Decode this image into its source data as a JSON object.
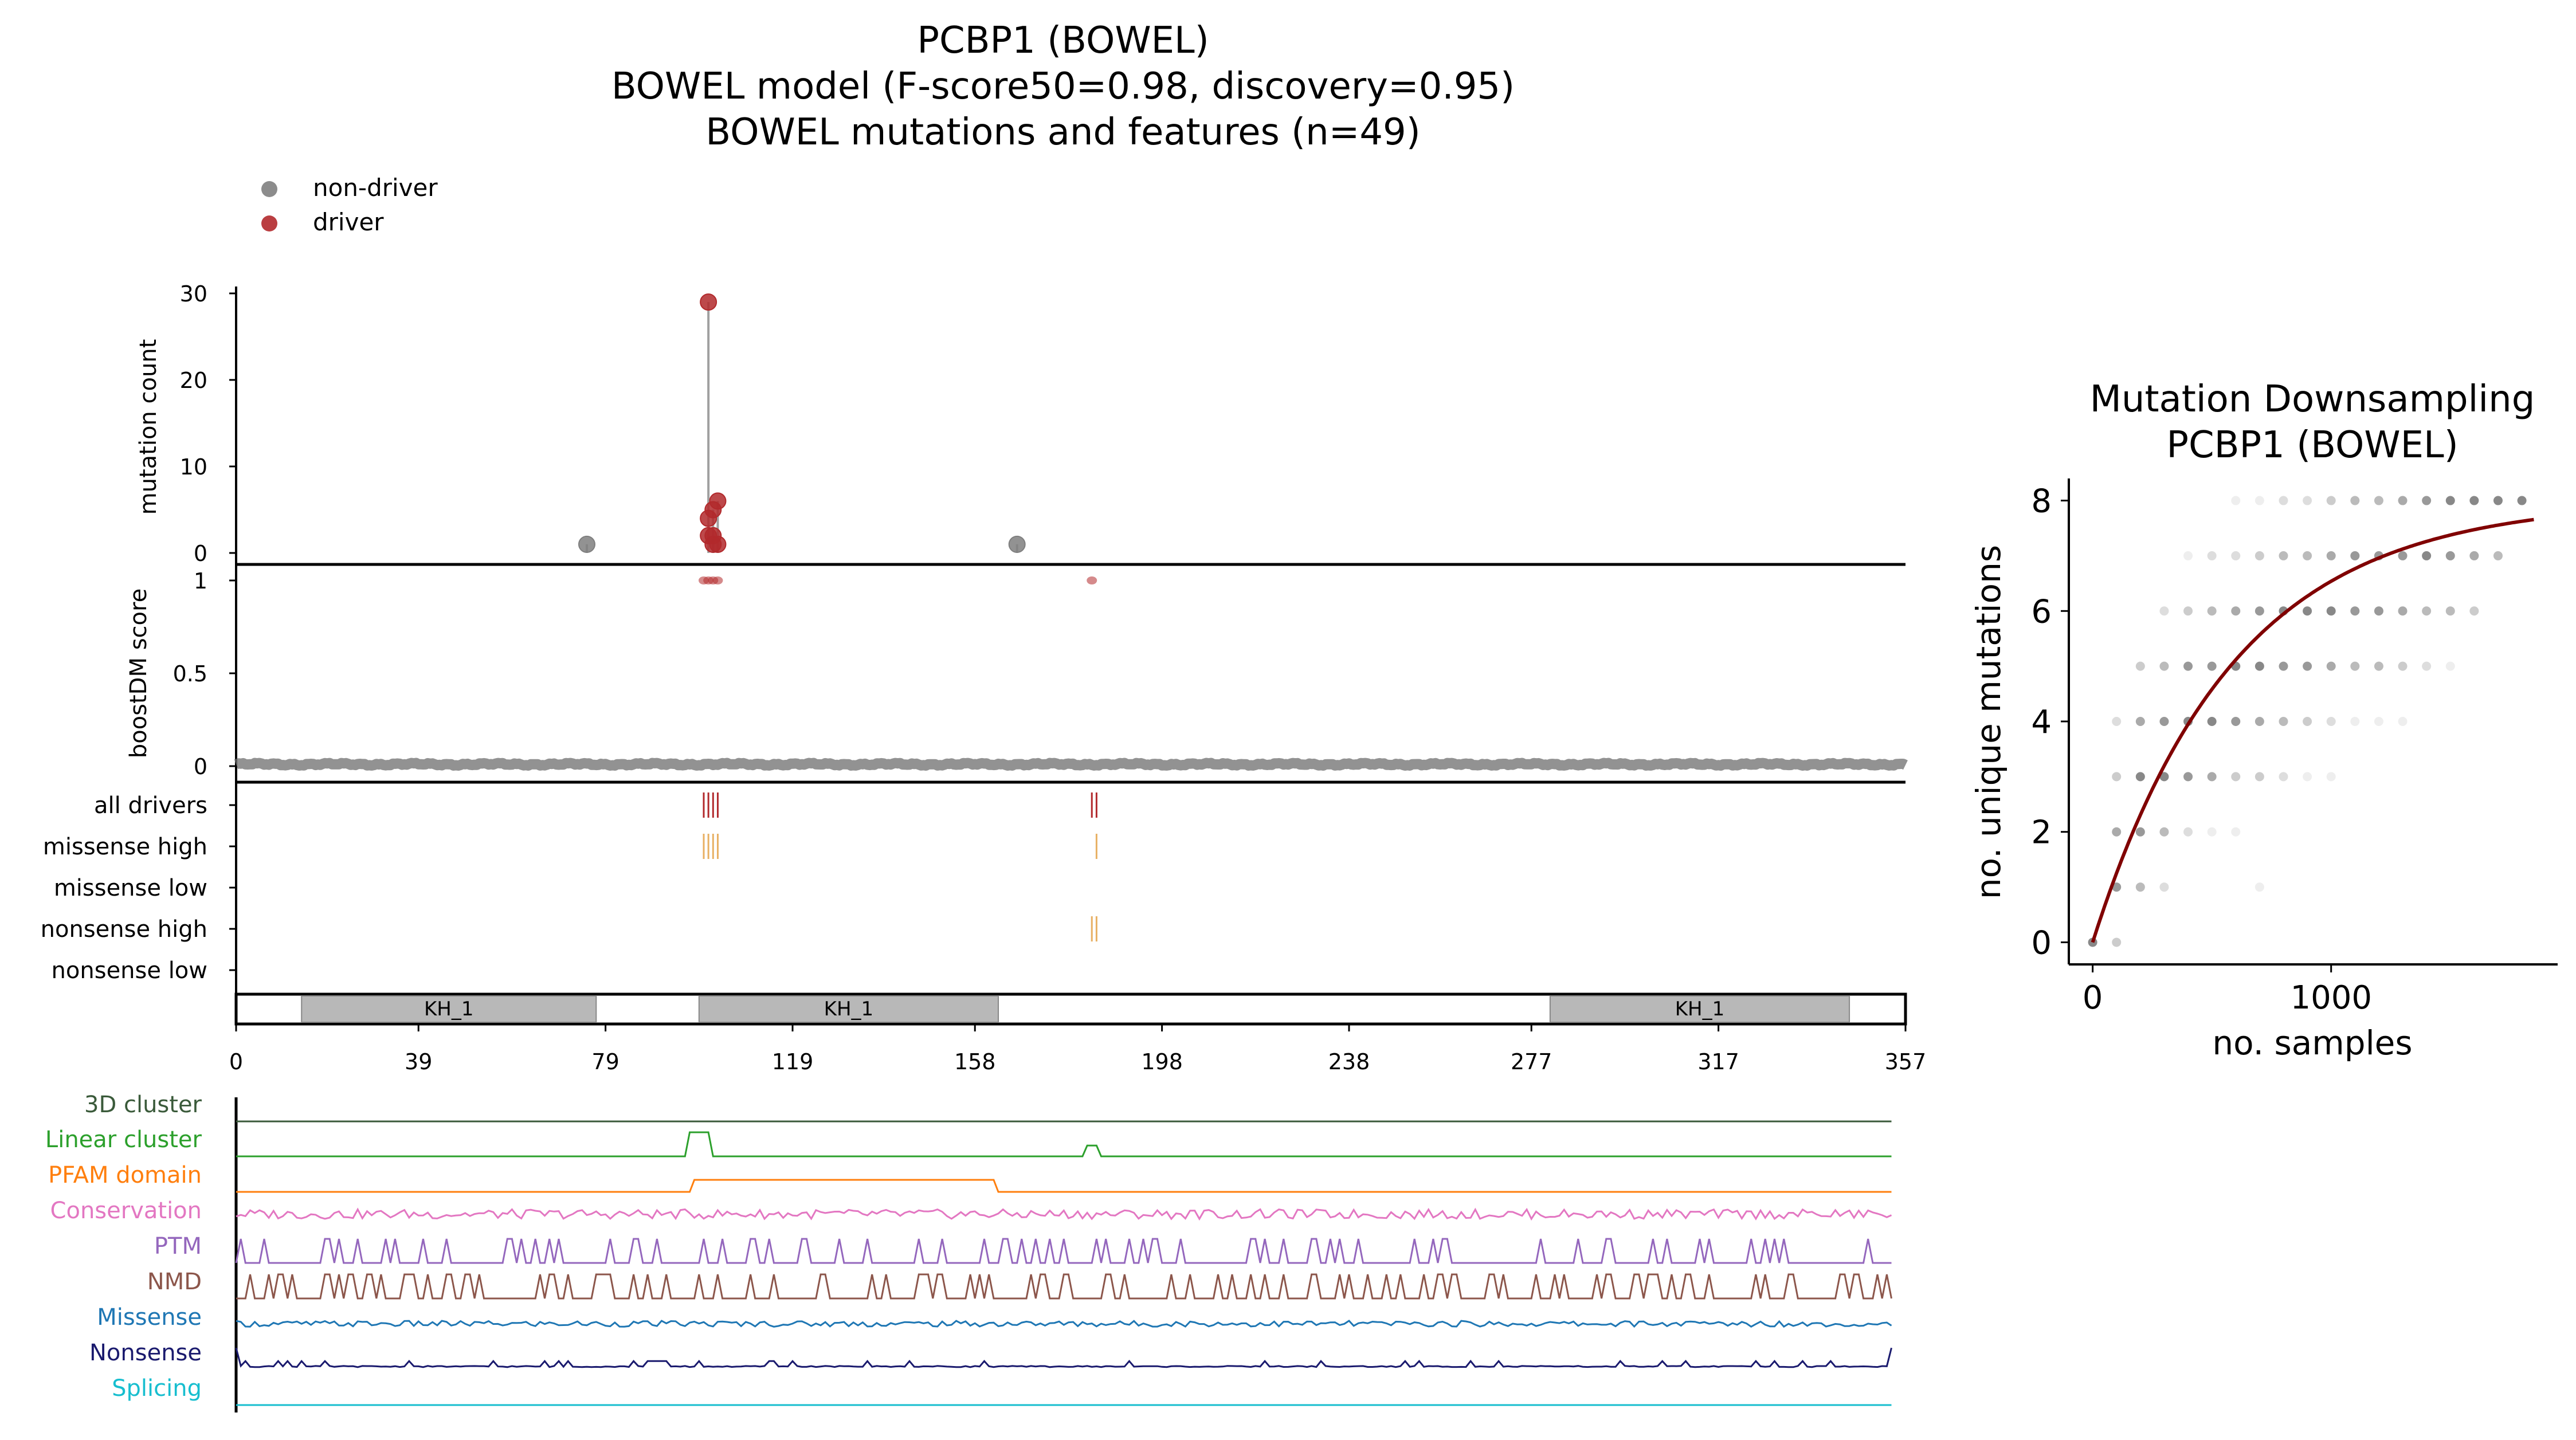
{
  "main": {
    "title_lines": [
      "PCBP1 (BOWEL)",
      "BOWEL model (F-score50=0.98, discovery=0.95)",
      "BOWEL mutations and features (n=49)"
    ],
    "legend": [
      {
        "label": "non-driver",
        "color": "#7f7f7f"
      },
      {
        "label": "driver",
        "color": "#b2292c"
      }
    ],
    "colors": {
      "driver": "#b2292c",
      "nondriver": "#7f7f7f",
      "stem": "#a0a0a0",
      "missense_high": "#e8b063",
      "nonsense_high": "#e8b063",
      "domain_fill": "#b8b8b8"
    }
  },
  "chart_data": [
    {
      "type": "scatter",
      "name": "mutation count lollipop",
      "ylabel": "mutation count",
      "ylim": [
        0,
        30
      ],
      "yticks": [
        0,
        10,
        20,
        30
      ],
      "xlim": [
        0,
        357
      ],
      "points": [
        {
          "x": 75,
          "y": 1,
          "class": "non-driver"
        },
        {
          "x": 101,
          "y": 29,
          "class": "driver"
        },
        {
          "x": 101,
          "y": 4,
          "class": "driver"
        },
        {
          "x": 101,
          "y": 2,
          "class": "driver"
        },
        {
          "x": 102,
          "y": 2,
          "class": "driver"
        },
        {
          "x": 102,
          "y": 1,
          "class": "driver"
        },
        {
          "x": 102,
          "y": 5,
          "class": "driver"
        },
        {
          "x": 103,
          "y": 6,
          "class": "driver"
        },
        {
          "x": 103,
          "y": 1,
          "class": "driver"
        },
        {
          "x": 167,
          "y": 1,
          "class": "non-driver"
        }
      ]
    },
    {
      "type": "scatter",
      "name": "boostDM score",
      "ylabel": "boostDM score",
      "ylim": [
        0,
        1
      ],
      "yticks": [
        0,
        0.5,
        1
      ],
      "yticklabels": [
        "0",
        "0.5",
        "1"
      ],
      "xlim": [
        0,
        357
      ],
      "baseline": 0.01,
      "high_points": [
        {
          "x": 100,
          "y": 1
        },
        {
          "x": 101,
          "y": 1
        },
        {
          "x": 102,
          "y": 1
        },
        {
          "x": 103,
          "y": 1
        },
        {
          "x": 183,
          "y": 1
        }
      ]
    },
    {
      "type": "table",
      "name": "driver tracks",
      "rows": [
        {
          "label": "all drivers",
          "positions": [
            100,
            101,
            102,
            103,
            183,
            184
          ],
          "color": "#b2292c"
        },
        {
          "label": "missense high",
          "positions": [
            100,
            101,
            102,
            103,
            184
          ],
          "color": "#e8b063"
        },
        {
          "label": "missense low",
          "positions": [],
          "color": "#e8b063"
        },
        {
          "label": "nonsense high",
          "positions": [
            183,
            184
          ],
          "color": "#e8b063"
        },
        {
          "label": "nonsense low",
          "positions": [],
          "color": "#e8b063"
        }
      ]
    },
    {
      "type": "bar",
      "name": "domains",
      "xlim": [
        0,
        357
      ],
      "domains": [
        {
          "label": "KH_1",
          "start": 14,
          "end": 77
        },
        {
          "label": "KH_1",
          "start": 99,
          "end": 163
        },
        {
          "label": "KH_1",
          "start": 281,
          "end": 345
        }
      ],
      "xticks": [
        0,
        39,
        79,
        119,
        158,
        198,
        238,
        277,
        317,
        357
      ]
    },
    {
      "type": "line",
      "name": "feature tracks",
      "xlim": [
        0,
        357
      ],
      "tracks": [
        {
          "label": "3D cluster",
          "color": "#3a5a3a"
        },
        {
          "label": "Linear cluster",
          "color": "#2ca02c"
        },
        {
          "label": "PFAM domain",
          "color": "#ff7f0e"
        },
        {
          "label": "Conservation",
          "color": "#e377c2"
        },
        {
          "label": "PTM",
          "color": "#9467bd"
        },
        {
          "label": "NMD",
          "color": "#8c564b"
        },
        {
          "label": "Missense",
          "color": "#1f77b4"
        },
        {
          "label": "Nonsense",
          "color": "#1a1a6e"
        },
        {
          "label": "Splicing",
          "color": "#17becf"
        }
      ],
      "linear_cluster_peaks": [
        {
          "start": 97,
          "end": 101,
          "height": 1
        },
        {
          "start": 182,
          "end": 184,
          "height": 0.45
        }
      ],
      "pfam_domain_range": [
        98,
        162
      ]
    },
    {
      "type": "scatter",
      "name": "Mutation Downsampling",
      "title_lines": [
        "Mutation Downsampling",
        "PCBP1 (BOWEL)"
      ],
      "xlabel": "no. samples",
      "ylabel": "no. unique mutations",
      "xlim": [
        -100,
        1950
      ],
      "ylim": [
        -0.4,
        8.4
      ],
      "xticks": [
        0,
        1000
      ],
      "yticks": [
        0,
        2,
        4,
        6,
        8
      ],
      "curve": {
        "asymptote": 8.0,
        "rate": 0.0017,
        "color": "#800000"
      },
      "sample_sizes": [
        0,
        100,
        200,
        300,
        400,
        500,
        600,
        700,
        800,
        900,
        1000,
        1100,
        1200,
        1300,
        1400,
        1500,
        1600,
        1700,
        1800
      ],
      "grey_points": [
        {
          "x": 0,
          "y": 0,
          "w": 0.7
        },
        {
          "x": 100,
          "y": 0,
          "w": 0.3
        },
        {
          "x": 100,
          "y": 1,
          "w": 0.6
        },
        {
          "x": 200,
          "y": 1,
          "w": 0.4
        },
        {
          "x": 300,
          "y": 1,
          "w": 0.2
        },
        {
          "x": 700,
          "y": 1,
          "w": 0.1
        },
        {
          "x": 100,
          "y": 2,
          "w": 0.5
        },
        {
          "x": 200,
          "y": 2,
          "w": 0.6
        },
        {
          "x": 300,
          "y": 2,
          "w": 0.4
        },
        {
          "x": 400,
          "y": 2,
          "w": 0.2
        },
        {
          "x": 500,
          "y": 2,
          "w": 0.1
        },
        {
          "x": 600,
          "y": 2,
          "w": 0.1
        },
        {
          "x": 100,
          "y": 3,
          "w": 0.3
        },
        {
          "x": 200,
          "y": 3,
          "w": 0.7
        },
        {
          "x": 300,
          "y": 3,
          "w": 0.7
        },
        {
          "x": 400,
          "y": 3,
          "w": 0.6
        },
        {
          "x": 500,
          "y": 3,
          "w": 0.5
        },
        {
          "x": 600,
          "y": 3,
          "w": 0.3
        },
        {
          "x": 700,
          "y": 3,
          "w": 0.3
        },
        {
          "x": 800,
          "y": 3,
          "w": 0.2
        },
        {
          "x": 900,
          "y": 3,
          "w": 0.1
        },
        {
          "x": 1000,
          "y": 3,
          "w": 0.1
        },
        {
          "x": 100,
          "y": 4,
          "w": 0.2
        },
        {
          "x": 200,
          "y": 4,
          "w": 0.5
        },
        {
          "x": 300,
          "y": 4,
          "w": 0.6
        },
        {
          "x": 400,
          "y": 4,
          "w": 0.7
        },
        {
          "x": 500,
          "y": 4,
          "w": 0.7
        },
        {
          "x": 600,
          "y": 4,
          "w": 0.6
        },
        {
          "x": 700,
          "y": 4,
          "w": 0.5
        },
        {
          "x": 800,
          "y": 4,
          "w": 0.4
        },
        {
          "x": 900,
          "y": 4,
          "w": 0.3
        },
        {
          "x": 1000,
          "y": 4,
          "w": 0.2
        },
        {
          "x": 1100,
          "y": 4,
          "w": 0.1
        },
        {
          "x": 1200,
          "y": 4,
          "w": 0.1
        },
        {
          "x": 1300,
          "y": 4,
          "w": 0.1
        },
        {
          "x": 200,
          "y": 5,
          "w": 0.3
        },
        {
          "x": 300,
          "y": 5,
          "w": 0.4
        },
        {
          "x": 400,
          "y": 5,
          "w": 0.6
        },
        {
          "x": 500,
          "y": 5,
          "w": 0.6
        },
        {
          "x": 600,
          "y": 5,
          "w": 0.7
        },
        {
          "x": 700,
          "y": 5,
          "w": 0.7
        },
        {
          "x": 800,
          "y": 5,
          "w": 0.6
        },
        {
          "x": 900,
          "y": 5,
          "w": 0.6
        },
        {
          "x": 1000,
          "y": 5,
          "w": 0.5
        },
        {
          "x": 1100,
          "y": 5,
          "w": 0.4
        },
        {
          "x": 1200,
          "y": 5,
          "w": 0.4
        },
        {
          "x": 1300,
          "y": 5,
          "w": 0.3
        },
        {
          "x": 1400,
          "y": 5,
          "w": 0.2
        },
        {
          "x": 1500,
          "y": 5,
          "w": 0.1
        },
        {
          "x": 300,
          "y": 6,
          "w": 0.2
        },
        {
          "x": 400,
          "y": 6,
          "w": 0.3
        },
        {
          "x": 500,
          "y": 6,
          "w": 0.4
        },
        {
          "x": 600,
          "y": 6,
          "w": 0.5
        },
        {
          "x": 700,
          "y": 6,
          "w": 0.6
        },
        {
          "x": 800,
          "y": 6,
          "w": 0.7
        },
        {
          "x": 900,
          "y": 6,
          "w": 0.7
        },
        {
          "x": 1000,
          "y": 6,
          "w": 0.7
        },
        {
          "x": 1100,
          "y": 6,
          "w": 0.6
        },
        {
          "x": 1200,
          "y": 6,
          "w": 0.6
        },
        {
          "x": 1300,
          "y": 6,
          "w": 0.5
        },
        {
          "x": 1400,
          "y": 6,
          "w": 0.4
        },
        {
          "x": 1500,
          "y": 6,
          "w": 0.4
        },
        {
          "x": 1600,
          "y": 6,
          "w": 0.3
        },
        {
          "x": 400,
          "y": 7,
          "w": 0.1
        },
        {
          "x": 500,
          "y": 7,
          "w": 0.2
        },
        {
          "x": 600,
          "y": 7,
          "w": 0.2
        },
        {
          "x": 700,
          "y": 7,
          "w": 0.3
        },
        {
          "x": 800,
          "y": 7,
          "w": 0.4
        },
        {
          "x": 900,
          "y": 7,
          "w": 0.4
        },
        {
          "x": 1000,
          "y": 7,
          "w": 0.5
        },
        {
          "x": 1100,
          "y": 7,
          "w": 0.6
        },
        {
          "x": 1200,
          "y": 7,
          "w": 0.6
        },
        {
          "x": 1300,
          "y": 7,
          "w": 0.6
        },
        {
          "x": 1400,
          "y": 7,
          "w": 0.7
        },
        {
          "x": 1500,
          "y": 7,
          "w": 0.6
        },
        {
          "x": 1600,
          "y": 7,
          "w": 0.5
        },
        {
          "x": 1700,
          "y": 7,
          "w": 0.4
        },
        {
          "x": 600,
          "y": 8,
          "w": 0.1
        },
        {
          "x": 700,
          "y": 8,
          "w": 0.1
        },
        {
          "x": 800,
          "y": 8,
          "w": 0.2
        },
        {
          "x": 900,
          "y": 8,
          "w": 0.2
        },
        {
          "x": 1000,
          "y": 8,
          "w": 0.3
        },
        {
          "x": 1100,
          "y": 8,
          "w": 0.4
        },
        {
          "x": 1200,
          "y": 8,
          "w": 0.4
        },
        {
          "x": 1300,
          "y": 8,
          "w": 0.5
        },
        {
          "x": 1400,
          "y": 8,
          "w": 0.6
        },
        {
          "x": 1500,
          "y": 8,
          "w": 0.7
        },
        {
          "x": 1600,
          "y": 8,
          "w": 0.7
        },
        {
          "x": 1700,
          "y": 8,
          "w": 0.7
        },
        {
          "x": 1800,
          "y": 8,
          "w": 0.7
        }
      ]
    }
  ]
}
